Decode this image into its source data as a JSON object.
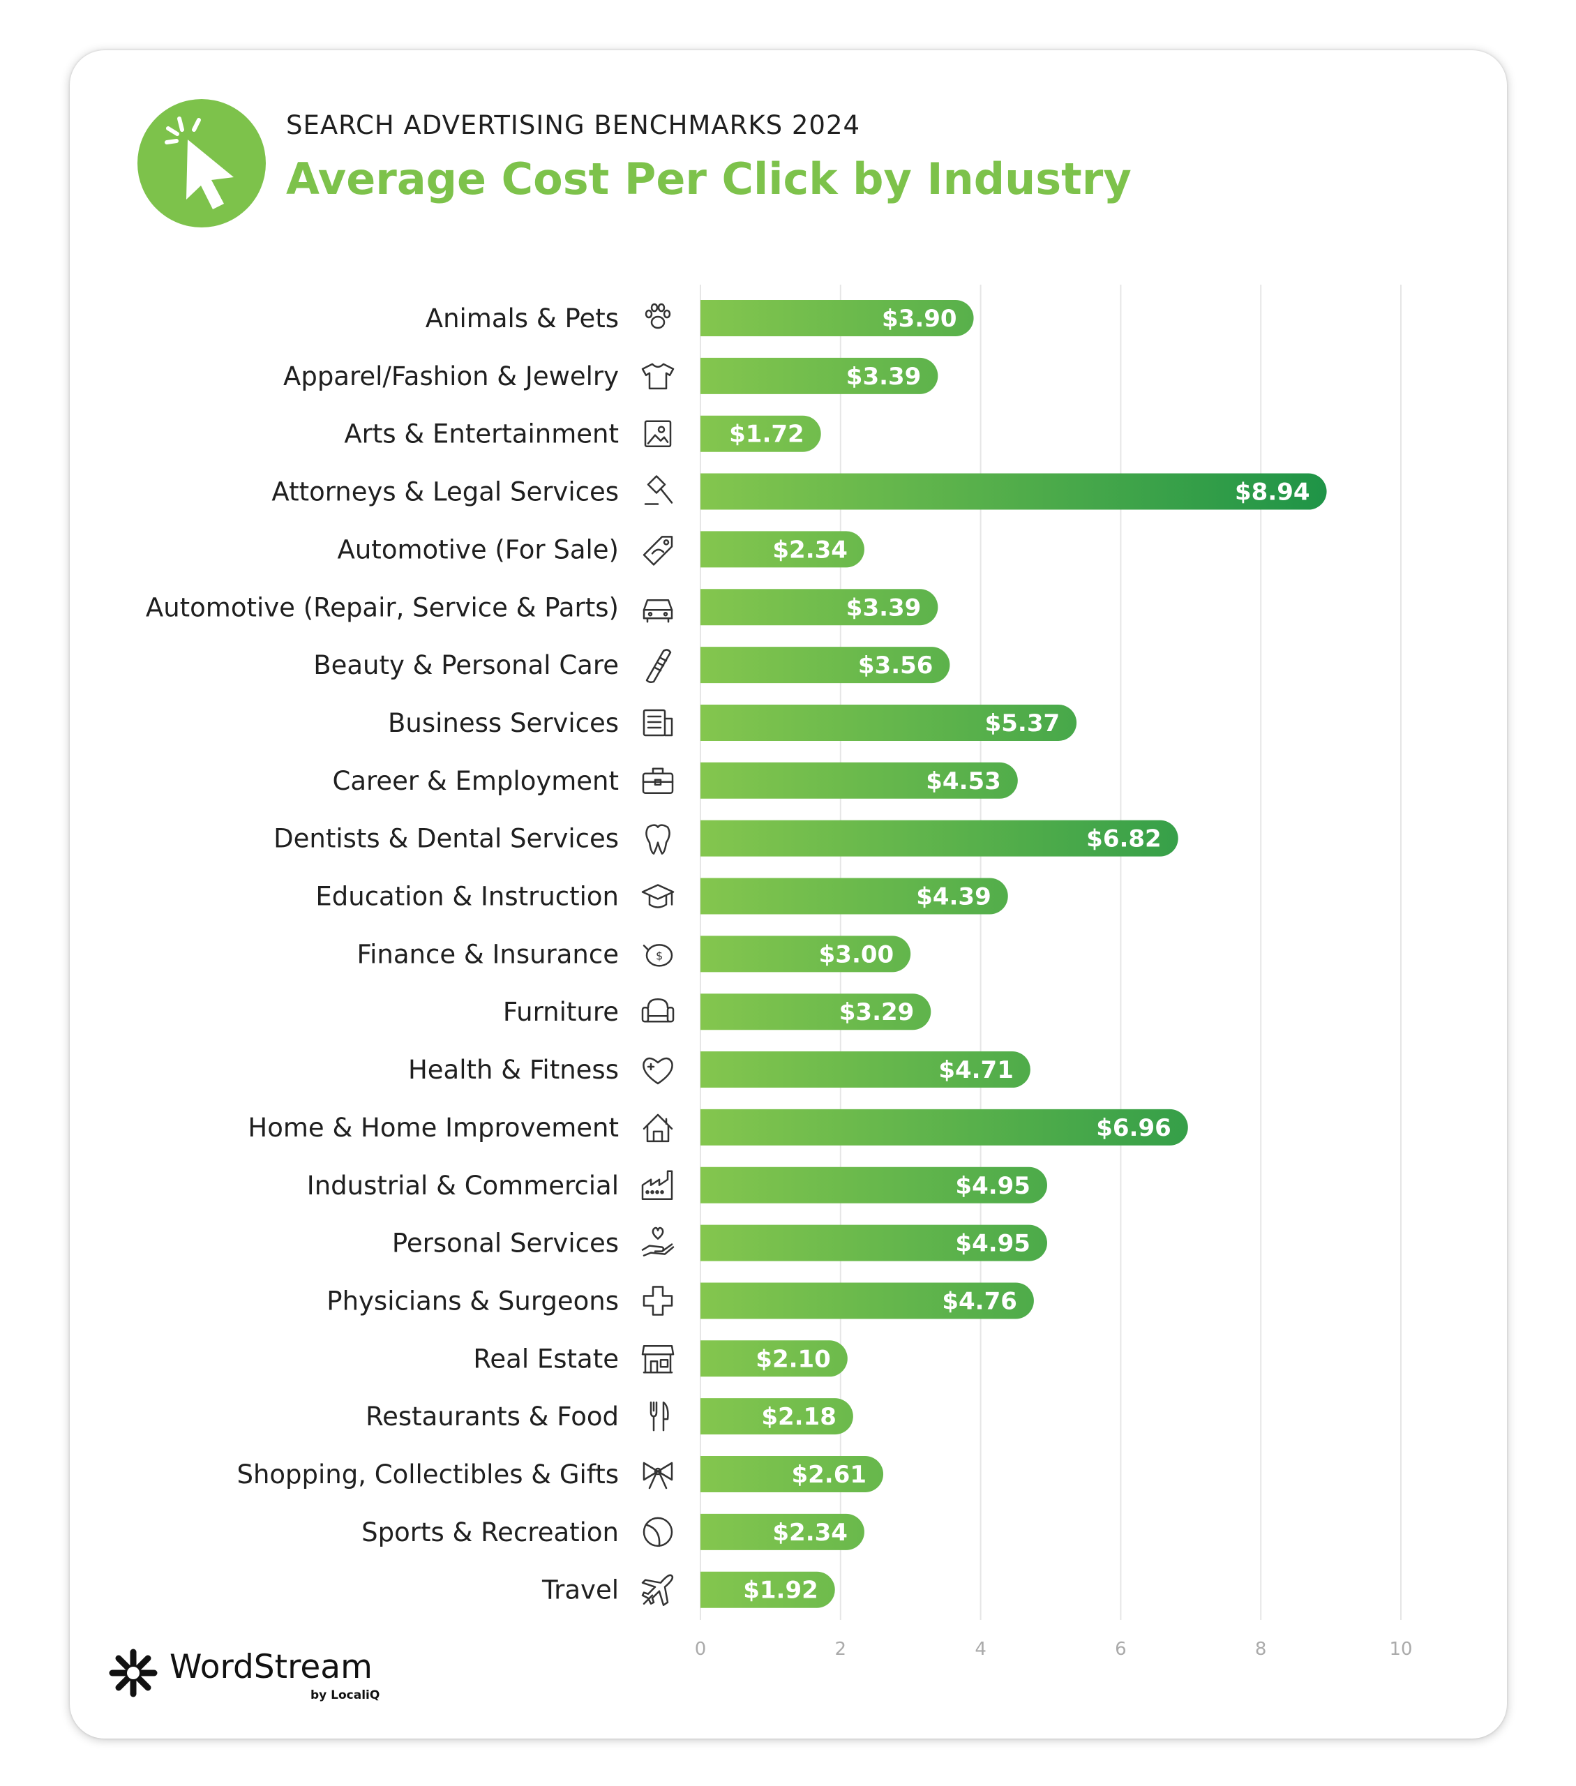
{
  "header": {
    "subtitle": "SEARCH ADVERTISING BENCHMARKS 2024",
    "title": "Average Cost Per Click by Industry",
    "badge_icon": "cursor-click-icon"
  },
  "colors": {
    "brand_green": "#7dc24b",
    "bar_start": "#84c64e",
    "bar_end": "#1f9447",
    "grid": "#e6e6e6",
    "tick": "#aaaaaa"
  },
  "chart_data": {
    "type": "bar",
    "orientation": "horizontal",
    "categories": [
      "Animals & Pets",
      "Apparel/Fashion & Jewelry",
      "Arts & Entertainment",
      "Attorneys & Legal Services",
      "Automotive (For Sale)",
      "Automotive (Repair, Service & Parts)",
      "Beauty & Personal Care",
      "Business Services",
      "Career & Employment",
      "Dentists & Dental Services",
      "Education & Instruction",
      "Finance & Insurance",
      "Furniture",
      "Health & Fitness",
      "Home & Home Improvement",
      "Industrial & Commercial",
      "Personal Services",
      "Physicians & Surgeons",
      "Real Estate",
      "Restaurants & Food",
      "Shopping, Collectibles & Gifts",
      "Sports & Recreation",
      "Travel"
    ],
    "values": [
      3.9,
      3.39,
      1.72,
      8.94,
      2.34,
      3.39,
      3.56,
      5.37,
      4.53,
      6.82,
      4.39,
      3.0,
      3.29,
      4.71,
      6.96,
      4.95,
      4.95,
      4.76,
      2.1,
      2.18,
      2.61,
      2.34,
      1.92
    ],
    "labels": [
      "$3.90",
      "$3.39",
      "$1.72",
      "$8.94",
      "$2.34",
      "$3.39",
      "$3.56",
      "$5.37",
      "$4.53",
      "$6.82",
      "$4.39",
      "$3.00",
      "$3.29",
      "$4.71",
      "$6.96",
      "$4.95",
      "$4.95",
      "$4.76",
      "$2.10",
      "$2.18",
      "$2.61",
      "$2.34",
      "$1.92"
    ],
    "icons": [
      "paw-icon",
      "tshirt-icon",
      "picture-icon",
      "gavel-icon",
      "price-tag-icon",
      "car-icon",
      "comb-icon",
      "document-icon",
      "briefcase-icon",
      "tooth-icon",
      "graduation-cap-icon",
      "piggy-bank-icon",
      "armchair-icon",
      "heart-icon",
      "house-icon",
      "factory-icon",
      "hand-heart-icon",
      "medical-cross-icon",
      "storefront-icon",
      "fork-knife-icon",
      "gift-bow-icon",
      "ball-icon",
      "airplane-icon"
    ],
    "xticks": [
      0,
      2,
      4,
      6,
      8,
      10
    ],
    "xlim": [
      0,
      10
    ],
    "grid": "vertical",
    "legend": "none"
  },
  "footer": {
    "logo_name": "WordStream",
    "logo_sub": "by LocaliQ",
    "logo_icon": "wordstream-logo-icon"
  }
}
